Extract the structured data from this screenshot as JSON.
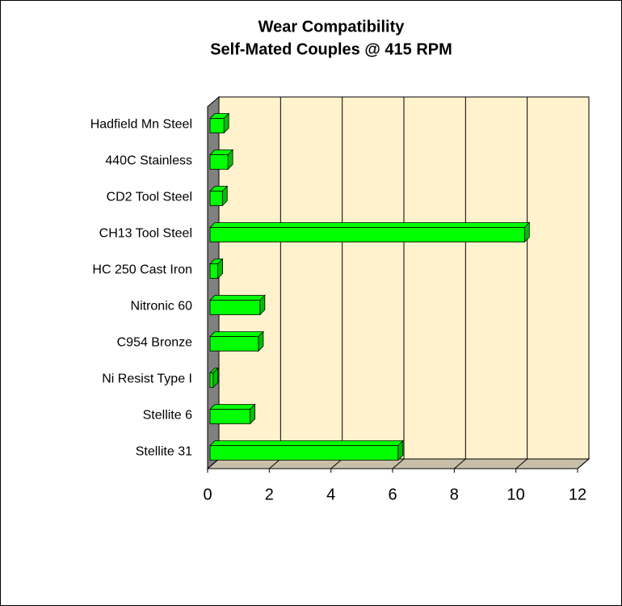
{
  "chart_data": {
    "type": "bar3d",
    "orientation": "horizontal",
    "title": "Wear Compatibility",
    "subtitle": "Self-Mated Couples @ 415 RPM",
    "categories": [
      "Hadfield Mn Steel",
      "440C Stainless",
      "CD2 Tool Steel",
      "CH13 Tool Steel",
      "HC 250 Cast Iron",
      "Nitronic 60",
      "C954 Bronze",
      "Ni Resist Type I",
      "Stellite 6",
      "Stellite 31"
    ],
    "values": [
      0.45,
      0.58,
      0.4,
      10.2,
      0.25,
      1.62,
      1.57,
      0.1,
      1.3,
      6.1
    ],
    "color": "#00ff00",
    "xlim": [
      0,
      12
    ],
    "xticks": [
      0,
      2,
      4,
      6,
      8,
      10,
      12
    ],
    "grid": true
  }
}
